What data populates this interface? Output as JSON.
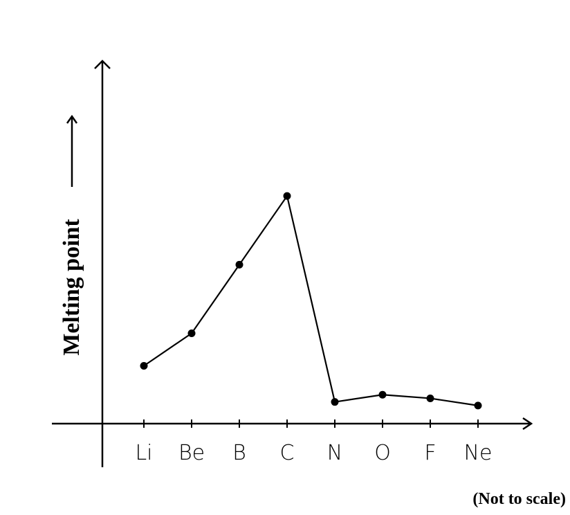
{
  "chart_data": {
    "type": "line",
    "ylabel": "Melting point",
    "annotation": "(Not to scale)",
    "categories": [
      "Li",
      "Be",
      "B",
      "C",
      "N",
      "O",
      "F",
      "Ne"
    ],
    "values": [
      16,
      25,
      44,
      63,
      6,
      8,
      7,
      5
    ],
    "color": "#000000",
    "ylim": [
      0,
      100
    ]
  }
}
